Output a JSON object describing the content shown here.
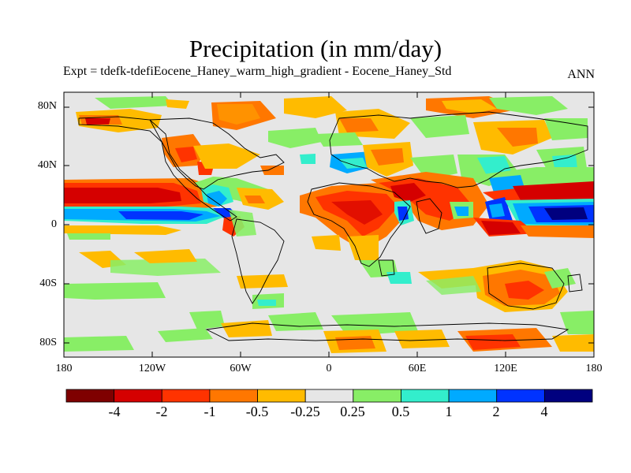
{
  "title": "Precipitation (in mm/day)",
  "subtitle": "Expt = tdefk-tdefiEocene_Haney_warm_high_gradient - Eocene_Haney_Std",
  "season": "ANN",
  "lat_ticks": [
    "80N",
    "40N",
    "0",
    "40S",
    "80S"
  ],
  "lon_ticks": [
    "180",
    "120W",
    "60W",
    "0",
    "60E",
    "120E",
    "180"
  ],
  "colorbar": {
    "labels": [
      "-4",
      "-2",
      "-1",
      "-0.5",
      "-0.25",
      "0.25",
      "0.5",
      "1",
      "2",
      "4"
    ],
    "colors": [
      "#7f0000",
      "#d50000",
      "#ff3300",
      "#ff7700",
      "#ffbb00",
      "#e6e6e6",
      "#88ee66",
      "#33eecc",
      "#00aaff",
      "#0033ff",
      "#00007f"
    ]
  }
}
